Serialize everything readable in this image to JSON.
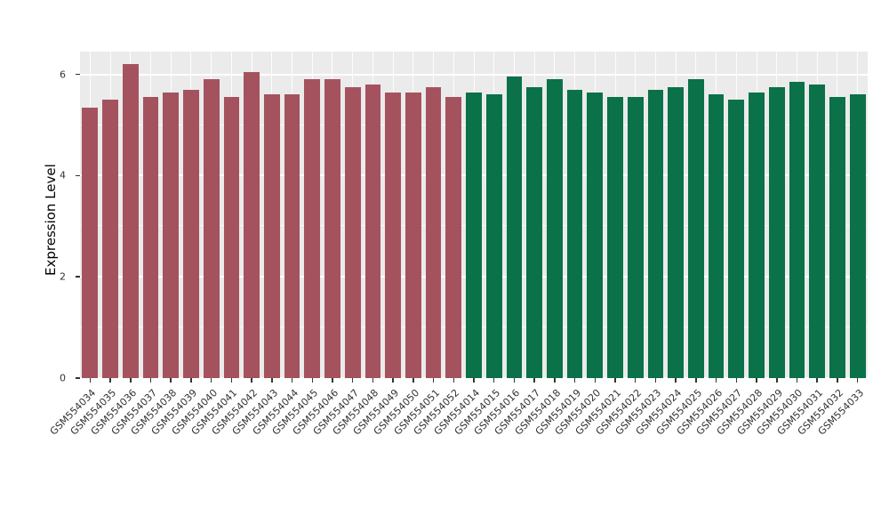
{
  "chart_data": {
    "type": "bar",
    "title": "",
    "xlabel": "",
    "ylabel": "Expression Level",
    "ylim": [
      0,
      6.45
    ],
    "yticks": [
      0,
      2,
      4,
      6
    ],
    "minor_gridlines": [
      1,
      3,
      5
    ],
    "grid": "on",
    "legend": "none",
    "panel_background": "#EBEBEB",
    "gridline_color": "#FFFFFF",
    "categories": [
      "GSM554034",
      "GSM554035",
      "GSM554036",
      "GSM554037",
      "GSM554038",
      "GSM554039",
      "GSM554040",
      "GSM554041",
      "GSM554042",
      "GSM554043",
      "GSM554044",
      "GSM554045",
      "GSM554046",
      "GSM554047",
      "GSM554048",
      "GSM554049",
      "GSM554050",
      "GSM554051",
      "GSM554052",
      "GSM554014",
      "GSM554015",
      "GSM554016",
      "GSM554017",
      "GSM554018",
      "GSM554019",
      "GSM554020",
      "GSM554021",
      "GSM554022",
      "GSM554023",
      "GSM554024",
      "GSM554025",
      "GSM554026",
      "GSM554027",
      "GSM554028",
      "GSM554029",
      "GSM554030",
      "GSM554031",
      "GSM554032",
      "GSM554033"
    ],
    "values": [
      5.35,
      5.5,
      6.2,
      5.55,
      5.65,
      5.7,
      5.9,
      5.55,
      6.05,
      5.6,
      5.6,
      5.9,
      5.9,
      5.75,
      5.8,
      5.65,
      5.65,
      5.75,
      5.55,
      5.65,
      5.6,
      5.95,
      5.75,
      5.9,
      5.7,
      5.65,
      5.55,
      5.55,
      5.7,
      5.75,
      5.9,
      5.6,
      5.5,
      5.65,
      5.75,
      5.85,
      5.8,
      5.55,
      5.6
    ],
    "groups": [
      "g1",
      "g1",
      "g1",
      "g1",
      "g1",
      "g1",
      "g1",
      "g1",
      "g1",
      "g1",
      "g1",
      "g1",
      "g1",
      "g1",
      "g1",
      "g1",
      "g1",
      "g1",
      "g1",
      "g2",
      "g2",
      "g2",
      "g2",
      "g2",
      "g2",
      "g2",
      "g2",
      "g2",
      "g2",
      "g2",
      "g2",
      "g2",
      "g2",
      "g2",
      "g2",
      "g2",
      "g2",
      "g2",
      "g2"
    ],
    "group_colors": {
      "g1": "#A5525F",
      "g2": "#0B7148"
    }
  }
}
